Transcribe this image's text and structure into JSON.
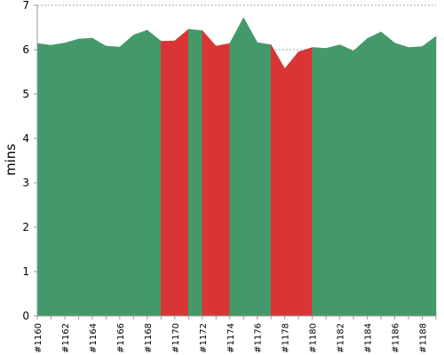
{
  "chart_data": {
    "type": "area",
    "ylabel": "mins",
    "ylim": [
      0,
      7
    ],
    "yticks": [
      0,
      1,
      2,
      3,
      4,
      5,
      6,
      7
    ],
    "grid": true,
    "colors": {
      "success": "#44996b",
      "failure": "#d93535",
      "grid": "#8a8a8a",
      "axis": "#9a9a9a"
    },
    "builds": [
      "#1160",
      "#1161",
      "#1162",
      "#1163",
      "#1164",
      "#1165",
      "#1166",
      "#1167",
      "#1168",
      "#1169",
      "#1170",
      "#1171",
      "#1172",
      "#1173",
      "#1174",
      "#1175",
      "#1176",
      "#1177",
      "#1178",
      "#1179",
      "#1180",
      "#1181",
      "#1182",
      "#1183",
      "#1184",
      "#1185",
      "#1186",
      "#1187",
      "#1188",
      "#1189"
    ],
    "xtick_labels": [
      "#1160",
      "#1162",
      "#1164",
      "#1166",
      "#1168",
      "#1170",
      "#1172",
      "#1174",
      "#1176",
      "#1178",
      "#1180",
      "#1182",
      "#1184",
      "#1186",
      "#1188"
    ],
    "values": [
      6.14,
      6.1,
      6.15,
      6.24,
      6.26,
      6.08,
      6.06,
      6.33,
      6.44,
      6.19,
      6.2,
      6.46,
      6.43,
      6.08,
      6.14,
      6.72,
      6.16,
      6.11,
      5.57,
      5.95,
      6.05,
      6.03,
      6.11,
      5.97,
      6.25,
      6.4,
      6.15,
      6.05,
      6.07,
      6.3
    ],
    "status": [
      "success",
      "success",
      "success",
      "success",
      "success",
      "success",
      "success",
      "success",
      "success",
      "success",
      "failure",
      "success",
      "success",
      "failure",
      "success",
      "success",
      "success",
      "success",
      "failure",
      "failure",
      "success",
      "success",
      "success",
      "success",
      "success",
      "success",
      "success",
      "success",
      "success",
      "success"
    ]
  }
}
